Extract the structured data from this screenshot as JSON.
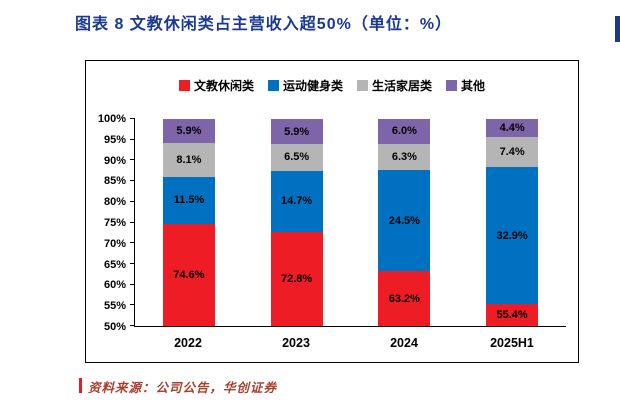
{
  "header": {
    "title": "图表 8  文教休闲类占主营收入超50%（单位：%）"
  },
  "footer": {
    "source": "资料来源：公司公告，华创证券"
  },
  "colors": {
    "title": "#1b3a8f",
    "source": "#a8402e",
    "accent_bar": "#e02020",
    "red": "#ee1c25",
    "blue": "#0070c0",
    "gray": "#b5b5b5",
    "purple": "#7e64a8"
  },
  "chart_data": {
    "type": "bar",
    "stacked": true,
    "title": "图表 8  文教休闲类占主营收入超50%（单位：%）",
    "categories": [
      "2022",
      "2023",
      "2024",
      "2025H1"
    ],
    "series": [
      {
        "name": "文教休闲类",
        "color_key": "red",
        "values": [
          74.6,
          72.8,
          63.2,
          55.4
        ]
      },
      {
        "name": "运动健身类",
        "color_key": "blue",
        "values": [
          11.5,
          14.7,
          24.5,
          32.9
        ]
      },
      {
        "name": "生活家居类",
        "color_key": "gray",
        "values": [
          8.1,
          6.5,
          6.3,
          7.4
        ]
      },
      {
        "name": "其他",
        "color_key": "purple",
        "values": [
          5.9,
          5.9,
          6.0,
          4.4
        ]
      }
    ],
    "xlabel": "",
    "ylabel": "",
    "ylim": [
      50,
      100
    ],
    "ytick_labels": [
      "50%",
      "55%",
      "60%",
      "65%",
      "70%",
      "75%",
      "80%",
      "85%",
      "90%",
      "95%",
      "100%"
    ],
    "legend_position": "top",
    "grid": false
  }
}
